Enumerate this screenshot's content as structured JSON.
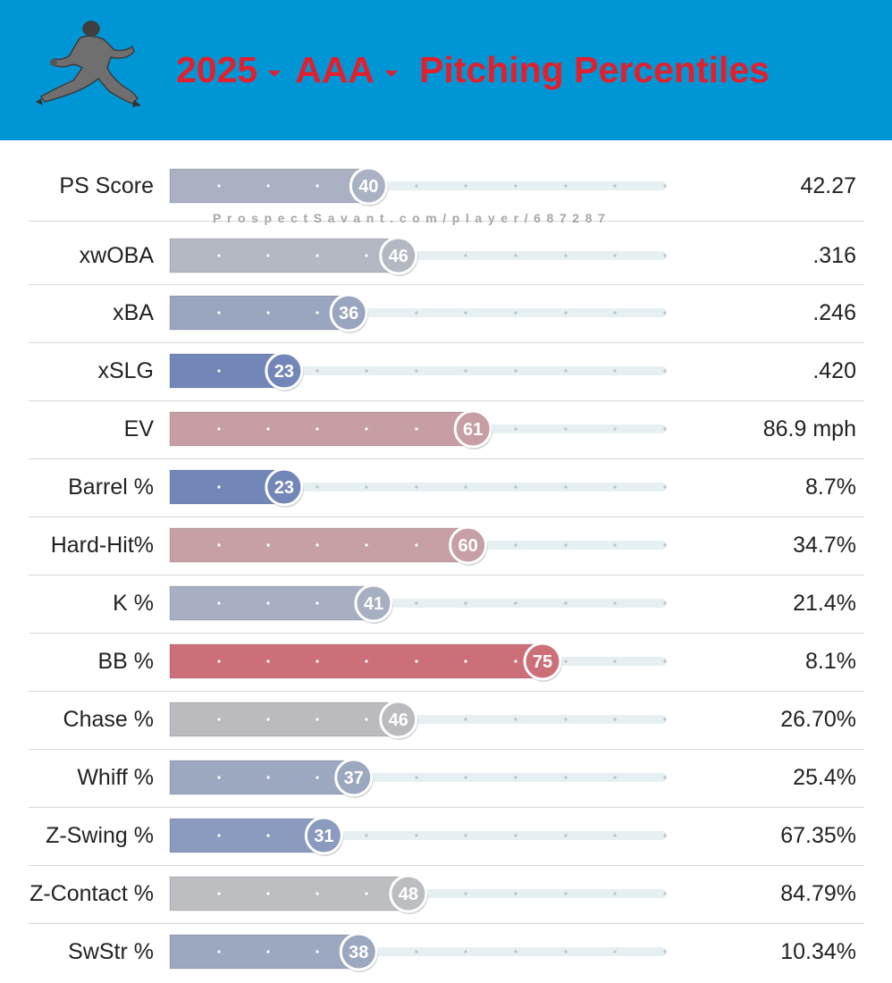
{
  "header": {
    "year": "2025",
    "level": "AAA",
    "title": "Pitching Percentiles",
    "background_color": "#0096d6",
    "title_color": "#e2202d",
    "logo_icon": "pitcher-silhouette-icon"
  },
  "watermark": "ProspectSavant.com/player/687287",
  "chart_data": {
    "type": "bar",
    "orientation": "horizontal",
    "title": "Pitching Percentiles",
    "xlim": [
      0,
      100
    ],
    "categories": [
      "PS Score",
      "xwOBA",
      "xBA",
      "xSLG",
      "EV",
      "Barrel %",
      "Hard-Hit%",
      "K %",
      "BB %",
      "Chase %",
      "Whiff %",
      "Z-Swing %",
      "Z-Contact %",
      "SwStr %"
    ],
    "percentiles": [
      40,
      46,
      36,
      23,
      61,
      23,
      60,
      41,
      75,
      46,
      37,
      31,
      48,
      38
    ],
    "stat_values": [
      "42.27",
      ".316",
      ".246",
      ".420",
      "86.9 mph",
      "8.7%",
      "34.7%",
      "21.4%",
      "8.1%",
      "26.70%",
      "25.4%",
      "67.35%",
      "84.79%",
      "10.34%"
    ],
    "bar_colors": [
      "#a9b1c2",
      "#b4b8c3",
      "#9aa5bf",
      "#7287b8",
      "#c69ea3",
      "#7287b8",
      "#c6a0a5",
      "#a7b0c2",
      "#cc6f78",
      "#bbbbbf",
      "#9ca7c0",
      "#8b9bc0",
      "#bdbec2",
      "#9ca7c0"
    ]
  }
}
